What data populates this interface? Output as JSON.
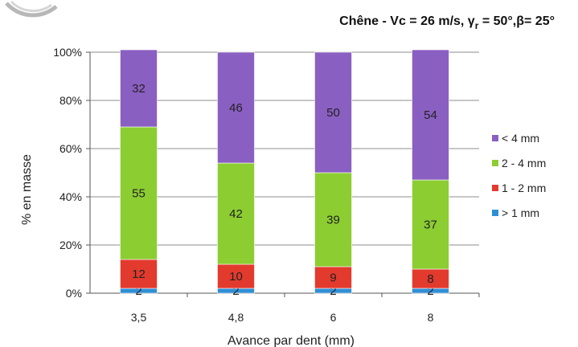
{
  "chart_data": {
    "type": "bar",
    "stacked": true,
    "normalized_percent": true,
    "title": "Chêne - Vc = 26 m/s, γr = 50°,β= 25°",
    "title_parts": {
      "main": "Chêne - Vc = 26 m/s, γ",
      "sub": "r",
      "rest": " = 50°,β= 25°"
    },
    "xlabel": "Avance par dent (mm)",
    "ylabel": "% en masse",
    "categories": [
      "3,5",
      "4,8",
      "6",
      "8"
    ],
    "ylim": [
      0,
      100
    ],
    "yticks": [
      "0%",
      "20%",
      "40%",
      "60%",
      "80%",
      "100%"
    ],
    "grid": true,
    "legend_position": "right",
    "series": [
      {
        "name": "> 1 mm",
        "color": "#2f8fd6",
        "values": [
          2,
          2,
          2,
          2
        ]
      },
      {
        "name": "1 - 2 mm",
        "color": "#e33a2e",
        "values": [
          12,
          10,
          9,
          8
        ]
      },
      {
        "name": "2 - 4 mm",
        "color": "#8ccd32",
        "values": [
          55,
          42,
          39,
          37
        ]
      },
      {
        "name": "< 4 mm",
        "color": "#8a5fc2",
        "values": [
          32,
          46,
          50,
          54
        ]
      }
    ]
  }
}
